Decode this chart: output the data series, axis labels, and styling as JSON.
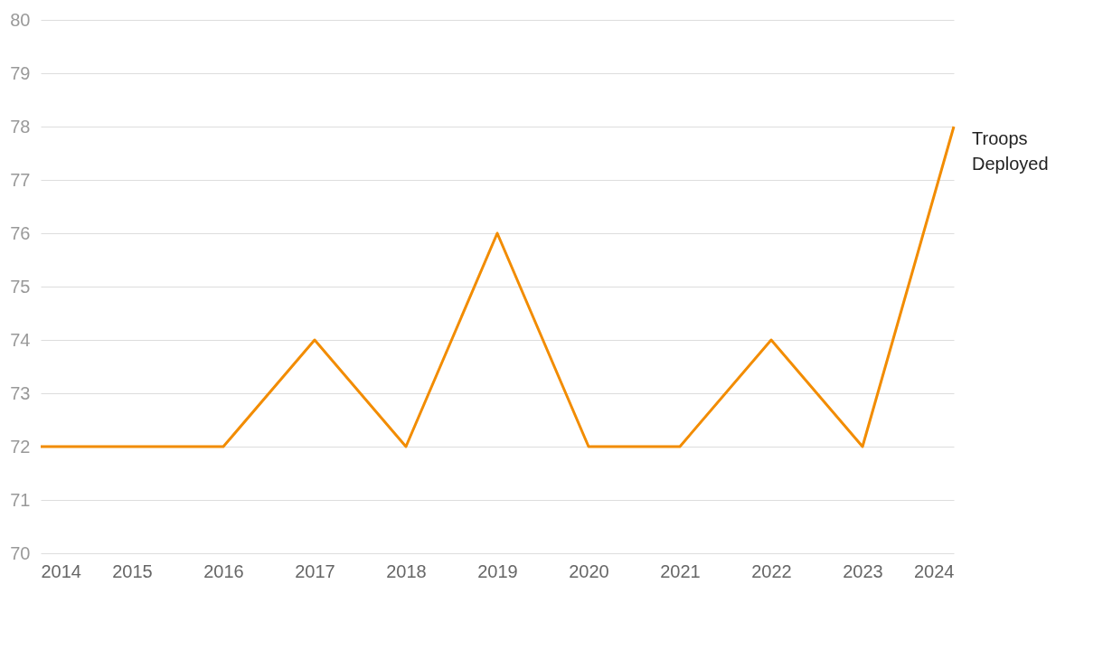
{
  "chart_data": {
    "type": "line",
    "x": [
      2014,
      2015,
      2016,
      2017,
      2018,
      2019,
      2020,
      2021,
      2022,
      2023,
      2024
    ],
    "series": [
      {
        "name": "Troops Deployed",
        "color": "#f28c00",
        "values": [
          72,
          72,
          72,
          74,
          72,
          76,
          72,
          72,
          74,
          72,
          78
        ]
      }
    ],
    "xlim": [
      2014,
      2024
    ],
    "xticks": [
      2014,
      2015,
      2016,
      2017,
      2018,
      2019,
      2020,
      2021,
      2022,
      2023,
      2024
    ],
    "ylim": [
      70,
      80
    ],
    "yticks": [
      70,
      71,
      72,
      73,
      74,
      75,
      76,
      77,
      78,
      79,
      80
    ],
    "grid": "y",
    "legend": false,
    "marker": "none",
    "line_style": "solid"
  }
}
